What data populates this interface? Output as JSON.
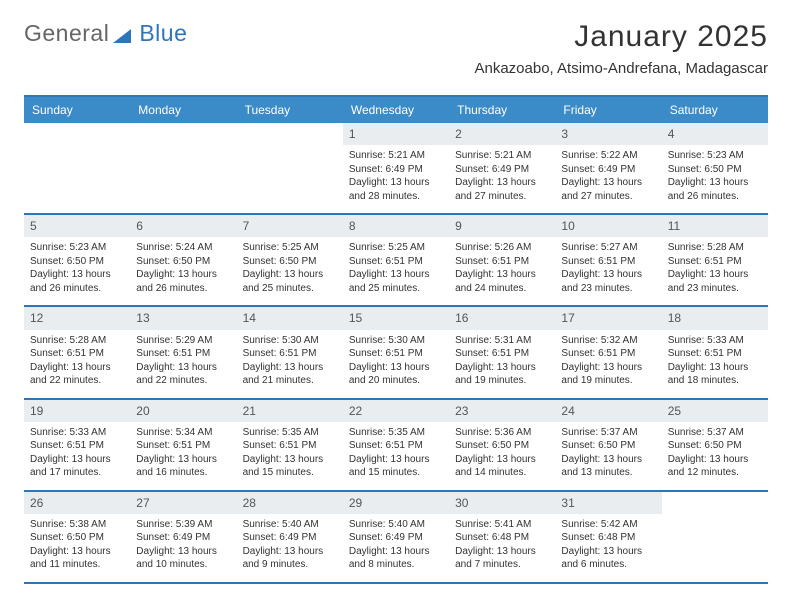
{
  "logo": {
    "text1": "General",
    "text2": "Blue"
  },
  "title": "January 2025",
  "location": "Ankazoabo, Atsimo-Andrefana, Madagascar",
  "weekdays": [
    "Sunday",
    "Monday",
    "Tuesday",
    "Wednesday",
    "Thursday",
    "Friday",
    "Saturday"
  ],
  "colors": {
    "brand": "#2f76b8",
    "headerBg": "#3b8bc9",
    "dayNumBg": "#e9edf0",
    "text": "#333333",
    "bg": "#ffffff"
  },
  "typography": {
    "title_fontsize": 30,
    "location_fontsize": 15,
    "weekday_fontsize": 12,
    "daynum_fontsize": 12,
    "cell_fontsize": 10
  },
  "layout": {
    "columns": 7,
    "rows": 5,
    "start_weekday_index": 3
  },
  "days": [
    {
      "n": "",
      "empty": true
    },
    {
      "n": "",
      "empty": true
    },
    {
      "n": "",
      "empty": true
    },
    {
      "n": "1",
      "sunrise": "Sunrise: 5:21 AM",
      "sunset": "Sunset: 6:49 PM",
      "daylight1": "Daylight: 13 hours",
      "daylight2": "and 28 minutes."
    },
    {
      "n": "2",
      "sunrise": "Sunrise: 5:21 AM",
      "sunset": "Sunset: 6:49 PM",
      "daylight1": "Daylight: 13 hours",
      "daylight2": "and 27 minutes."
    },
    {
      "n": "3",
      "sunrise": "Sunrise: 5:22 AM",
      "sunset": "Sunset: 6:49 PM",
      "daylight1": "Daylight: 13 hours",
      "daylight2": "and 27 minutes."
    },
    {
      "n": "4",
      "sunrise": "Sunrise: 5:23 AM",
      "sunset": "Sunset: 6:50 PM",
      "daylight1": "Daylight: 13 hours",
      "daylight2": "and 26 minutes."
    },
    {
      "n": "5",
      "sunrise": "Sunrise: 5:23 AM",
      "sunset": "Sunset: 6:50 PM",
      "daylight1": "Daylight: 13 hours",
      "daylight2": "and 26 minutes."
    },
    {
      "n": "6",
      "sunrise": "Sunrise: 5:24 AM",
      "sunset": "Sunset: 6:50 PM",
      "daylight1": "Daylight: 13 hours",
      "daylight2": "and 26 minutes."
    },
    {
      "n": "7",
      "sunrise": "Sunrise: 5:25 AM",
      "sunset": "Sunset: 6:50 PM",
      "daylight1": "Daylight: 13 hours",
      "daylight2": "and 25 minutes."
    },
    {
      "n": "8",
      "sunrise": "Sunrise: 5:25 AM",
      "sunset": "Sunset: 6:51 PM",
      "daylight1": "Daylight: 13 hours",
      "daylight2": "and 25 minutes."
    },
    {
      "n": "9",
      "sunrise": "Sunrise: 5:26 AM",
      "sunset": "Sunset: 6:51 PM",
      "daylight1": "Daylight: 13 hours",
      "daylight2": "and 24 minutes."
    },
    {
      "n": "10",
      "sunrise": "Sunrise: 5:27 AM",
      "sunset": "Sunset: 6:51 PM",
      "daylight1": "Daylight: 13 hours",
      "daylight2": "and 23 minutes."
    },
    {
      "n": "11",
      "sunrise": "Sunrise: 5:28 AM",
      "sunset": "Sunset: 6:51 PM",
      "daylight1": "Daylight: 13 hours",
      "daylight2": "and 23 minutes."
    },
    {
      "n": "12",
      "sunrise": "Sunrise: 5:28 AM",
      "sunset": "Sunset: 6:51 PM",
      "daylight1": "Daylight: 13 hours",
      "daylight2": "and 22 minutes."
    },
    {
      "n": "13",
      "sunrise": "Sunrise: 5:29 AM",
      "sunset": "Sunset: 6:51 PM",
      "daylight1": "Daylight: 13 hours",
      "daylight2": "and 22 minutes."
    },
    {
      "n": "14",
      "sunrise": "Sunrise: 5:30 AM",
      "sunset": "Sunset: 6:51 PM",
      "daylight1": "Daylight: 13 hours",
      "daylight2": "and 21 minutes."
    },
    {
      "n": "15",
      "sunrise": "Sunrise: 5:30 AM",
      "sunset": "Sunset: 6:51 PM",
      "daylight1": "Daylight: 13 hours",
      "daylight2": "and 20 minutes."
    },
    {
      "n": "16",
      "sunrise": "Sunrise: 5:31 AM",
      "sunset": "Sunset: 6:51 PM",
      "daylight1": "Daylight: 13 hours",
      "daylight2": "and 19 minutes."
    },
    {
      "n": "17",
      "sunrise": "Sunrise: 5:32 AM",
      "sunset": "Sunset: 6:51 PM",
      "daylight1": "Daylight: 13 hours",
      "daylight2": "and 19 minutes."
    },
    {
      "n": "18",
      "sunrise": "Sunrise: 5:33 AM",
      "sunset": "Sunset: 6:51 PM",
      "daylight1": "Daylight: 13 hours",
      "daylight2": "and 18 minutes."
    },
    {
      "n": "19",
      "sunrise": "Sunrise: 5:33 AM",
      "sunset": "Sunset: 6:51 PM",
      "daylight1": "Daylight: 13 hours",
      "daylight2": "and 17 minutes."
    },
    {
      "n": "20",
      "sunrise": "Sunrise: 5:34 AM",
      "sunset": "Sunset: 6:51 PM",
      "daylight1": "Daylight: 13 hours",
      "daylight2": "and 16 minutes."
    },
    {
      "n": "21",
      "sunrise": "Sunrise: 5:35 AM",
      "sunset": "Sunset: 6:51 PM",
      "daylight1": "Daylight: 13 hours",
      "daylight2": "and 15 minutes."
    },
    {
      "n": "22",
      "sunrise": "Sunrise: 5:35 AM",
      "sunset": "Sunset: 6:51 PM",
      "daylight1": "Daylight: 13 hours",
      "daylight2": "and 15 minutes."
    },
    {
      "n": "23",
      "sunrise": "Sunrise: 5:36 AM",
      "sunset": "Sunset: 6:50 PM",
      "daylight1": "Daylight: 13 hours",
      "daylight2": "and 14 minutes."
    },
    {
      "n": "24",
      "sunrise": "Sunrise: 5:37 AM",
      "sunset": "Sunset: 6:50 PM",
      "daylight1": "Daylight: 13 hours",
      "daylight2": "and 13 minutes."
    },
    {
      "n": "25",
      "sunrise": "Sunrise: 5:37 AM",
      "sunset": "Sunset: 6:50 PM",
      "daylight1": "Daylight: 13 hours",
      "daylight2": "and 12 minutes."
    },
    {
      "n": "26",
      "sunrise": "Sunrise: 5:38 AM",
      "sunset": "Sunset: 6:50 PM",
      "daylight1": "Daylight: 13 hours",
      "daylight2": "and 11 minutes."
    },
    {
      "n": "27",
      "sunrise": "Sunrise: 5:39 AM",
      "sunset": "Sunset: 6:49 PM",
      "daylight1": "Daylight: 13 hours",
      "daylight2": "and 10 minutes."
    },
    {
      "n": "28",
      "sunrise": "Sunrise: 5:40 AM",
      "sunset": "Sunset: 6:49 PM",
      "daylight1": "Daylight: 13 hours",
      "daylight2": "and 9 minutes."
    },
    {
      "n": "29",
      "sunrise": "Sunrise: 5:40 AM",
      "sunset": "Sunset: 6:49 PM",
      "daylight1": "Daylight: 13 hours",
      "daylight2": "and 8 minutes."
    },
    {
      "n": "30",
      "sunrise": "Sunrise: 5:41 AM",
      "sunset": "Sunset: 6:48 PM",
      "daylight1": "Daylight: 13 hours",
      "daylight2": "and 7 minutes."
    },
    {
      "n": "31",
      "sunrise": "Sunrise: 5:42 AM",
      "sunset": "Sunset: 6:48 PM",
      "daylight1": "Daylight: 13 hours",
      "daylight2": "and 6 minutes."
    },
    {
      "n": "",
      "empty": true
    }
  ]
}
